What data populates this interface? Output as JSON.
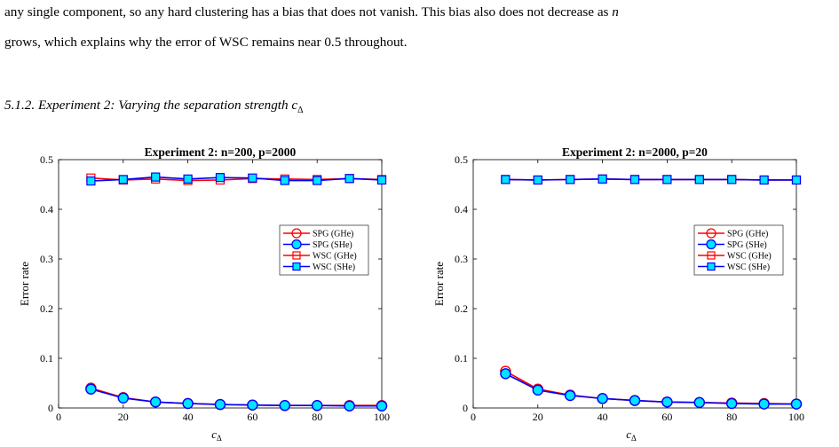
{
  "text": {
    "line1_pre": "any single component, so any hard clustering has a bias that does not vanish. This bias also does not decrease as ",
    "line1_var": "n",
    "line2": "grows, which explains why the error of WSC remains near 0.5 throughout.",
    "section_title": "5.1.2. Experiment 2: Varying the separation strength c",
    "section_sub": "Δ"
  },
  "legend_labels": [
    "SPG (GHe)",
    "SPG (SHe)",
    "WSC (GHe)",
    "WSC (SHe)"
  ],
  "colors": {
    "ghe": "#ff0000",
    "she": "#0000ff",
    "fill": "#00e5ff"
  },
  "chart_data": [
    {
      "type": "line",
      "title": "Experiment 2: n=200, p=2000",
      "xlabel": "cΔ",
      "ylabel": "Error rate",
      "xlim": [
        0,
        100
      ],
      "ylim": [
        0,
        0.5
      ],
      "xticks": [
        0,
        20,
        40,
        60,
        80,
        100
      ],
      "yticks": [
        0,
        0.1,
        0.2,
        0.3,
        0.4,
        0.5
      ],
      "grid": false,
      "legend_position": "right",
      "x": [
        10,
        20,
        30,
        40,
        50,
        60,
        70,
        80,
        90,
        100
      ],
      "series": [
        {
          "name": "SPG (GHe)",
          "marker": "circle",
          "color": "#ff0000",
          "values": [
            0.04,
            0.021,
            0.012,
            0.009,
            0.007,
            0.006,
            0.005,
            0.005,
            0.005,
            0.005
          ]
        },
        {
          "name": "SPG (SHe)",
          "marker": "circle",
          "color": "#0000ff",
          "values": [
            0.038,
            0.02,
            0.012,
            0.009,
            0.007,
            0.006,
            0.005,
            0.005,
            0.004,
            0.004
          ]
        },
        {
          "name": "WSC (GHe)",
          "marker": "square",
          "color": "#ff0000",
          "values": [
            0.463,
            0.459,
            0.461,
            0.458,
            0.459,
            0.462,
            0.461,
            0.46,
            0.462,
            0.46
          ]
        },
        {
          "name": "WSC (SHe)",
          "marker": "square",
          "color": "#0000ff",
          "values": [
            0.457,
            0.46,
            0.465,
            0.461,
            0.464,
            0.463,
            0.458,
            0.458,
            0.462,
            0.459
          ]
        }
      ]
    },
    {
      "type": "line",
      "title": "Experiment 2: n=2000, p=20",
      "xlabel": "cΔ",
      "ylabel": "Error rate",
      "xlim": [
        0,
        100
      ],
      "ylim": [
        0,
        0.5
      ],
      "xticks": [
        0,
        20,
        40,
        60,
        80,
        100
      ],
      "yticks": [
        0,
        0.1,
        0.2,
        0.3,
        0.4,
        0.5
      ],
      "grid": false,
      "legend_position": "right",
      "x": [
        10,
        20,
        30,
        40,
        50,
        60,
        70,
        80,
        90,
        100
      ],
      "series": [
        {
          "name": "SPG (GHe)",
          "marker": "circle",
          "color": "#ff0000",
          "values": [
            0.074,
            0.038,
            0.026,
            0.019,
            0.015,
            0.012,
            0.011,
            0.01,
            0.009,
            0.008
          ]
        },
        {
          "name": "SPG (SHe)",
          "marker": "circle",
          "color": "#0000ff",
          "values": [
            0.069,
            0.036,
            0.025,
            0.019,
            0.015,
            0.012,
            0.011,
            0.009,
            0.008,
            0.008
          ]
        },
        {
          "name": "WSC (GHe)",
          "marker": "square",
          "color": "#ff0000",
          "values": [
            0.46,
            0.459,
            0.46,
            0.461,
            0.46,
            0.46,
            0.46,
            0.46,
            0.459,
            0.459
          ]
        },
        {
          "name": "WSC (SHe)",
          "marker": "square",
          "color": "#0000ff",
          "values": [
            0.46,
            0.459,
            0.46,
            0.461,
            0.46,
            0.46,
            0.46,
            0.46,
            0.459,
            0.459
          ]
        }
      ]
    }
  ]
}
